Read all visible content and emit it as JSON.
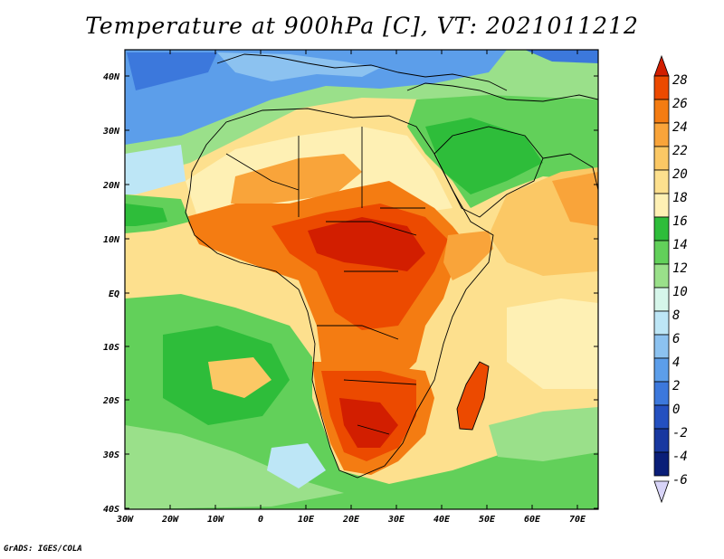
{
  "title": "Temperature at 900hPa [C], VT: 2021011212",
  "credit": "GrADS: IGES/COLA",
  "axes": {
    "x_ticks": [
      "30W",
      "20W",
      "10W",
      "0",
      "10E",
      "20E",
      "30E",
      "40E",
      "50E",
      "60E",
      "70E"
    ],
    "y_ticks": [
      "40N",
      "30N",
      "20N",
      "10N",
      "EQ",
      "10S",
      "20S",
      "30S",
      "40S"
    ]
  },
  "colorbar": {
    "labels": [
      "28",
      "26",
      "24",
      "22",
      "20",
      "18",
      "16",
      "14",
      "12",
      "10",
      "8",
      "6",
      "4",
      "2",
      "0",
      "-2",
      "-4",
      "-6"
    ],
    "colors": [
      "#d21e00",
      "#ec4a00",
      "#f47c12",
      "#f9a43a",
      "#fbc865",
      "#fde08e",
      "#fef0b4",
      "#2ebd3a",
      "#62d05a",
      "#9ae08a",
      "#d6f6ea",
      "#bde6f6",
      "#8cc2f0",
      "#5c9eea",
      "#3c78dc",
      "#2450c0",
      "#1838a0",
      "#0a1e78"
    ]
  },
  "chart_data": {
    "type": "heatmap",
    "variable": "Temperature at 900hPa",
    "unit": "C",
    "valid_time": "2021011212",
    "lon_range": [
      -30,
      75
    ],
    "lat_range": [
      -40,
      45
    ],
    "levels": [
      -6,
      -4,
      -2,
      0,
      2,
      4,
      6,
      8,
      10,
      12,
      14,
      16,
      18,
      20,
      22,
      24,
      26,
      28
    ]
  }
}
